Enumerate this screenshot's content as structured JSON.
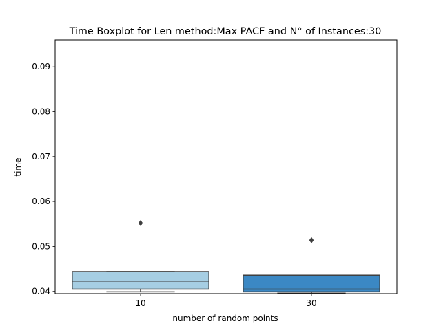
{
  "chart_data": {
    "type": "boxplot",
    "title": "Time Boxplot for Len method:Max PACF and N° of Instances:30",
    "xlabel": "number of random points",
    "ylabel": "time",
    "categories": [
      "10",
      "30"
    ],
    "ylim": [
      0.0395,
      0.096
    ],
    "yticks": [
      0.04,
      0.05,
      0.06,
      0.07,
      0.08,
      0.09
    ],
    "ytick_labels": [
      "0.04",
      "0.05",
      "0.06",
      "0.07",
      "0.08",
      "0.09"
    ],
    "grid": false,
    "boxes": [
      {
        "category": "10",
        "whislo": 0.0399,
        "q1": 0.0405,
        "median": 0.0423,
        "q3": 0.0444,
        "whishi": 0.0444,
        "fliers": [
          0.0552
        ],
        "color": "#a6cee3"
      },
      {
        "category": "30",
        "whislo": 0.0396,
        "q1": 0.0399,
        "median": 0.0405,
        "q3": 0.0436,
        "whishi": 0.0436,
        "fliers": [
          0.0514
        ],
        "color": "#3b88c4"
      }
    ]
  },
  "colors": {
    "box_edge": "#3f3f3f",
    "axis": "#000000",
    "background": "#ffffff"
  }
}
